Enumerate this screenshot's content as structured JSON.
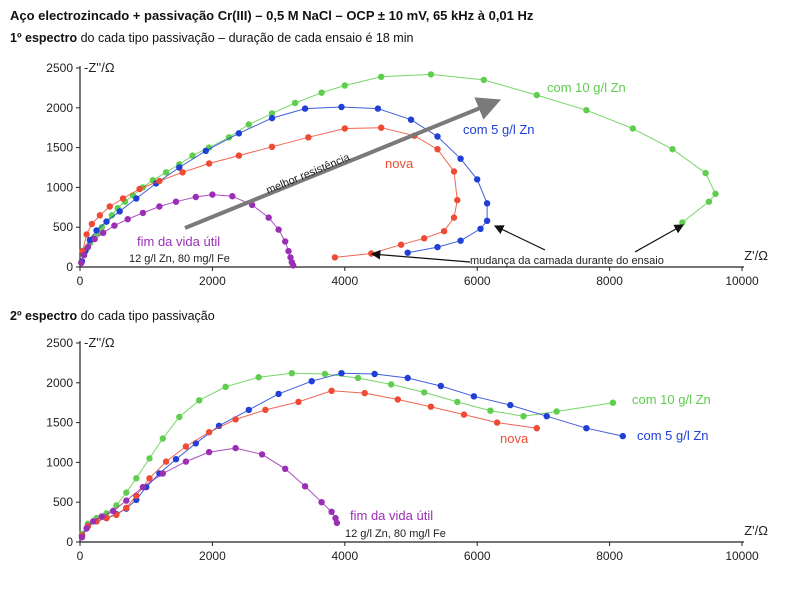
{
  "header": {
    "title": "Aço electrozincado + passivação Cr(III) – 0,5 M NaCl – OCP ± 10 mV, 65 kHz à 0,01 Hz",
    "sub1_bold": "1º espectro",
    "sub1_rest": " do cada tipo passivação – duração de cada ensaio é 18 min",
    "sub2_bold": "2º espectro",
    "sub2_rest": " do cada tipo passivação"
  },
  "colors": {
    "green": "#5fce4e",
    "blue": "#1f3fd6",
    "red": "#ee4a34",
    "purple": "#9a2fb6",
    "axis": "#222222",
    "arrow": "#7a7a7a"
  },
  "chart_data": [
    {
      "type": "scatter",
      "ylabel": "-Z''/Ω",
      "xlabel": "Z'/Ω",
      "xlim": [
        0,
        10000
      ],
      "ylim": [
        0,
        2500
      ],
      "xticks": [
        "0",
        "2000",
        "4000",
        "6000",
        "8000",
        "10000"
      ],
      "yticks": [
        "0",
        "500",
        "1000",
        "1500",
        "2000",
        "2500"
      ],
      "series": [
        {
          "name": "com 10 g/l Zn",
          "color": "#5fce4e",
          "x": [
            20,
            60,
            100,
            150,
            210,
            270,
            330,
            400,
            480,
            570,
            680,
            800,
            950,
            1100,
            1300,
            1500,
            1700,
            1950,
            2250,
            2550,
            2900,
            3250,
            3650,
            4000,
            4550,
            5300,
            6100,
            6900,
            7650,
            8350,
            8950,
            9450,
            9600,
            9500,
            9100
          ],
          "y": [
            60,
            150,
            230,
            300,
            370,
            430,
            500,
            570,
            650,
            740,
            820,
            900,
            1000,
            1090,
            1190,
            1290,
            1400,
            1500,
            1630,
            1790,
            1930,
            2060,
            2190,
            2280,
            2390,
            2420,
            2350,
            2160,
            1970,
            1740,
            1480,
            1180,
            920,
            820,
            560
          ]
        },
        {
          "name": "com 5 g/l Zn",
          "color": "#1f3fd6",
          "x": [
            30,
            80,
            150,
            250,
            400,
            600,
            850,
            1150,
            1500,
            1900,
            2400,
            2900,
            3400,
            3950,
            4500,
            5000,
            5400,
            5750,
            6000,
            6150,
            6150,
            6050,
            5750,
            5400,
            4950
          ],
          "y": [
            70,
            200,
            340,
            460,
            570,
            700,
            860,
            1050,
            1250,
            1460,
            1680,
            1870,
            1990,
            2010,
            1990,
            1850,
            1640,
            1360,
            1100,
            800,
            580,
            480,
            330,
            250,
            180
          ]
        },
        {
          "name": "nova",
          "color": "#ee4a34",
          "x": [
            40,
            100,
            180,
            300,
            450,
            650,
            900,
            1200,
            1550,
            1950,
            2400,
            2900,
            3450,
            4000,
            4550,
            5050,
            5400,
            5650,
            5700,
            5650,
            5500,
            5200,
            4850,
            4400,
            3850
          ],
          "y": [
            200,
            410,
            540,
            650,
            760,
            860,
            980,
            1080,
            1190,
            1300,
            1400,
            1510,
            1630,
            1740,
            1750,
            1650,
            1480,
            1200,
            840,
            620,
            450,
            360,
            280,
            170,
            120
          ]
        },
        {
          "name": "fim da vida útil",
          "color": "#9a2fb6",
          "x": [
            20,
            60,
            120,
            220,
            350,
            520,
            720,
            950,
            1200,
            1450,
            1750,
            2000,
            2300,
            2600,
            2850,
            3000,
            3100,
            3150,
            3180,
            3200,
            3220
          ],
          "y": [
            50,
            150,
            250,
            350,
            430,
            520,
            600,
            680,
            760,
            820,
            880,
            910,
            890,
            780,
            620,
            470,
            320,
            200,
            120,
            60,
            20
          ]
        }
      ],
      "annotations": [
        "melhor resistência",
        "mudança da camada durante do ensaio",
        "12 g/l Zn, 80 mg/l Fe"
      ]
    },
    {
      "type": "scatter",
      "ylabel": "-Z''/Ω",
      "xlabel": "Z'/Ω",
      "xlim": [
        0,
        10000
      ],
      "ylim": [
        0,
        2500
      ],
      "xticks": [
        "0",
        "2000",
        "4000",
        "6000",
        "8000",
        "10000"
      ],
      "yticks": [
        "0",
        "500",
        "1000",
        "1500",
        "2000",
        "2500"
      ],
      "series": [
        {
          "name": "com 10 g/l Zn",
          "color": "#5fce4e",
          "x": [
            30,
            120,
            250,
            400,
            550,
            700,
            850,
            1050,
            1250,
            1500,
            1800,
            2200,
            2700,
            3200,
            3700,
            4200,
            4700,
            5200,
            5700,
            6200,
            6700,
            7200,
            8050
          ],
          "y": [
            100,
            230,
            300,
            360,
            460,
            620,
            800,
            1050,
            1300,
            1570,
            1780,
            1950,
            2070,
            2120,
            2110,
            2060,
            1980,
            1880,
            1760,
            1650,
            1580,
            1640,
            1750
          ]
        },
        {
          "name": "com 5 g/l Zn",
          "color": "#1f3fd6",
          "x": [
            30,
            120,
            250,
            400,
            550,
            700,
            850,
            1000,
            1200,
            1450,
            1750,
            2100,
            2550,
            3000,
            3500,
            3950,
            4450,
            4950,
            5450,
            5950,
            6500,
            7050,
            7650,
            8200
          ],
          "y": [
            80,
            200,
            260,
            300,
            350,
            420,
            530,
            690,
            860,
            1040,
            1240,
            1460,
            1660,
            1860,
            2020,
            2120,
            2110,
            2060,
            1960,
            1830,
            1720,
            1580,
            1430,
            1330
          ]
        },
        {
          "name": "nova",
          "color": "#ee4a34",
          "x": [
            30,
            120,
            250,
            400,
            550,
            700,
            850,
            1050,
            1300,
            1600,
            1950,
            2350,
            2800,
            3300,
            3800,
            4300,
            4800,
            5300,
            5800,
            6300,
            6900
          ],
          "y": [
            80,
            200,
            260,
            300,
            340,
            430,
            580,
            800,
            1010,
            1200,
            1380,
            1540,
            1660,
            1760,
            1900,
            1870,
            1790,
            1700,
            1600,
            1500,
            1430
          ]
        },
        {
          "name": "fim da vida útil",
          "color": "#9a2fb6",
          "x": [
            30,
            100,
            200,
            330,
            500,
            700,
            950,
            1250,
            1600,
            1950,
            2350,
            2750,
            3100,
            3400,
            3650,
            3800,
            3860,
            3880
          ],
          "y": [
            60,
            170,
            260,
            320,
            390,
            520,
            690,
            860,
            1010,
            1130,
            1180,
            1100,
            920,
            700,
            500,
            380,
            300,
            240
          ]
        }
      ],
      "annotations": [
        "12 g/l Zn, 80 mg/l Fe"
      ]
    }
  ]
}
